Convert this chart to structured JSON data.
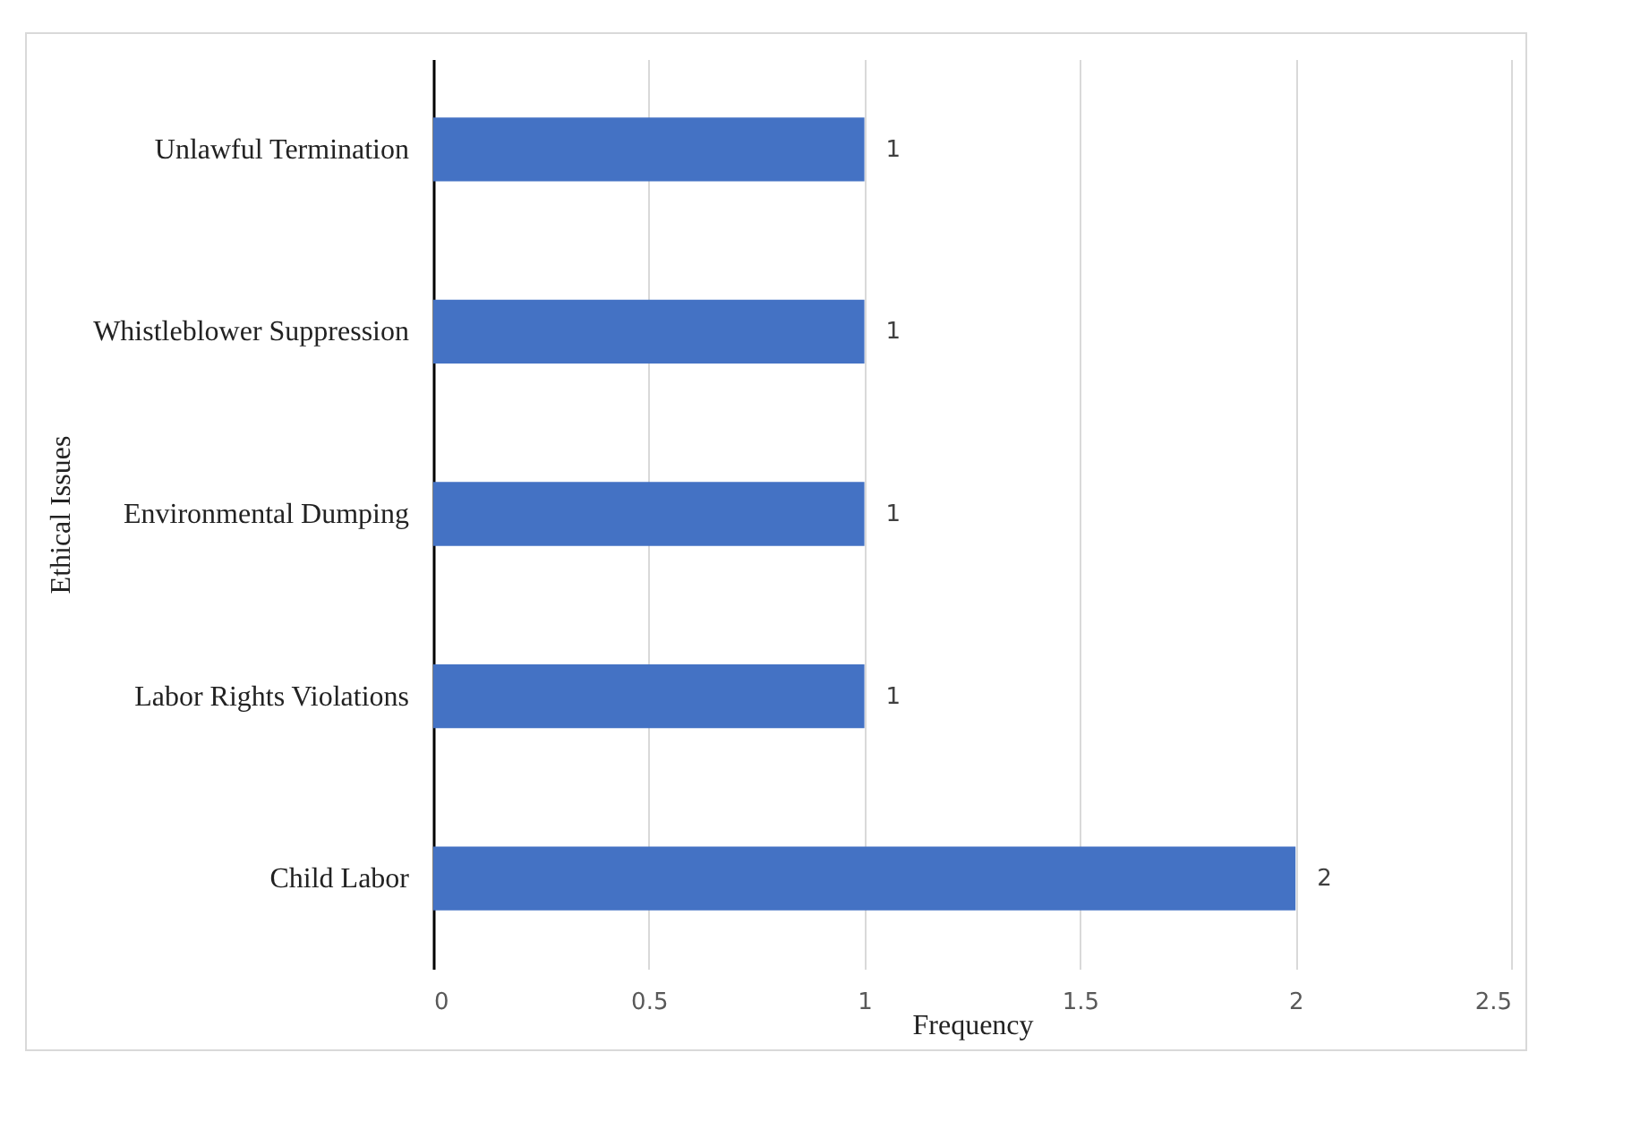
{
  "chart_data": {
    "type": "bar",
    "orientation": "horizontal",
    "xlabel": "Frequency",
    "ylabel": "Ethical Issues",
    "categories": [
      "Unlawful Termination",
      "Whistleblower Suppression",
      "Environmental Dumping",
      "Labor Rights Violations",
      "Child Labor"
    ],
    "values": [
      1,
      1,
      1,
      1,
      2
    ],
    "color": "#4472c4",
    "xlim": [
      0,
      2.5
    ],
    "xticks": [
      0,
      0.5,
      1,
      1.5,
      2,
      2.5
    ],
    "grid": "x",
    "data_labels": true
  }
}
